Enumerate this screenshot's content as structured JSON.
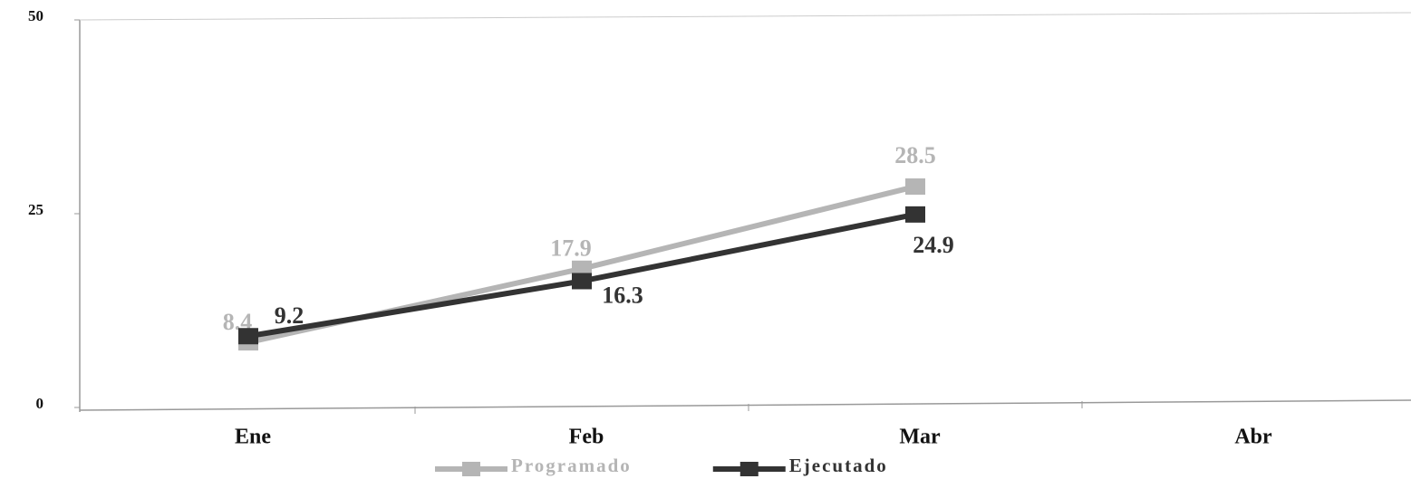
{
  "chart_data": {
    "type": "line",
    "categories": [
      "Ene",
      "Feb",
      "Mar",
      "Abr"
    ],
    "series": [
      {
        "name": "Programado",
        "color": "#b5b5b5",
        "values": [
          8.4,
          17.9,
          28.5,
          null
        ]
      },
      {
        "name": "Ejecutado",
        "color": "#333333",
        "values": [
          9.2,
          16.3,
          24.9,
          null
        ]
      }
    ],
    "ylim": [
      0,
      50
    ],
    "yticks": [
      0,
      25,
      50
    ],
    "grid": false,
    "legend": "bottom"
  }
}
